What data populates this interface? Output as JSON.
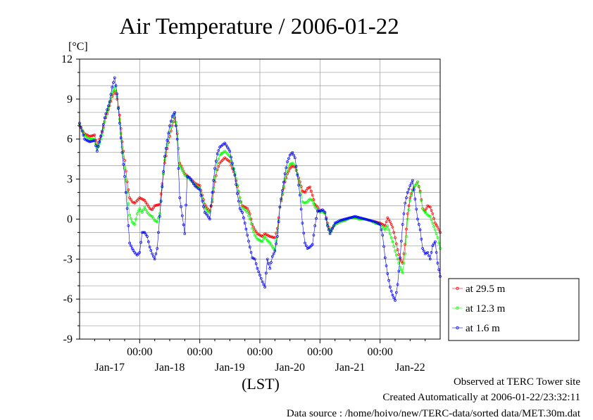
{
  "chart_data": {
    "type": "line",
    "title": "Air Temperature / 2006-01-22",
    "ylabel": "[°C]",
    "xlabel": "(LST)",
    "ylim": [
      -9,
      12
    ],
    "yticks": [
      "12",
      "9",
      "6",
      "3",
      "0",
      "-3",
      "-6",
      "-9"
    ],
    "ytick_values": [
      12,
      9,
      6,
      3,
      0,
      -3,
      -6,
      -9
    ],
    "x_range_hours": [
      0,
      144
    ],
    "xtick_time_label": "00:00",
    "xtick_hours": [
      24,
      48,
      72,
      96,
      120
    ],
    "date_labels": [
      "Jan-17",
      "Jan-18",
      "Jan-19",
      "Jan-20",
      "Jan-21",
      "Jan-22"
    ],
    "date_label_hours": [
      12,
      36,
      60,
      84,
      108,
      132
    ],
    "grid": true,
    "legend_position": "right",
    "x_values_note": "hours since 2006-01-16 00:00 LST",
    "series": [
      {
        "name": "at 29.5 m",
        "color": "#ff0000",
        "x": [
          0,
          2,
          4,
          6,
          7,
          8,
          9,
          10,
          12,
          13,
          14,
          14.5,
          15,
          16,
          17,
          18,
          19,
          20,
          21,
          22,
          24,
          26,
          28,
          29,
          30,
          32,
          34,
          35,
          36,
          37,
          38,
          39,
          40,
          42,
          44,
          45,
          46,
          48,
          50,
          51,
          52,
          53,
          54,
          55,
          56,
          58,
          60,
          62,
          64,
          65,
          66,
          67,
          68,
          69,
          70,
          71,
          72,
          73,
          74,
          76,
          78,
          79,
          80,
          82,
          83,
          84,
          85,
          86,
          87,
          88,
          89,
          90,
          91,
          92,
          93,
          94,
          95,
          96,
          97,
          98,
          99,
          100,
          102,
          104,
          106,
          108,
          110,
          112,
          114,
          116,
          118,
          120,
          121,
          122,
          123,
          124,
          125,
          126,
          127,
          128,
          129,
          130,
          131,
          132,
          133,
          134,
          135,
          136,
          137,
          138,
          139,
          140,
          141,
          142,
          143,
          144
        ],
        "values": [
          7.0,
          6.4,
          6.2,
          6.3,
          5.5,
          6.0,
          6.5,
          7.3,
          8.5,
          9.2,
          9.6,
          9.4,
          9.0,
          7.8,
          5.8,
          4.4,
          2.8,
          1.6,
          1.3,
          1.2,
          1.6,
          1.4,
          0.8,
          0.7,
          1.0,
          1.1,
          4.2,
          5.3,
          6.2,
          7.0,
          7.6,
          6.4,
          4.2,
          3.4,
          3.1,
          2.9,
          2.7,
          2.5,
          1.1,
          0.8,
          0.6,
          1.3,
          2.8,
          3.7,
          4.2,
          4.6,
          4.3,
          3.3,
          1.6,
          1.0,
          0.9,
          0.8,
          0.4,
          -0.4,
          -0.8,
          -1.1,
          -1.2,
          -1.3,
          -1.1,
          -1.3,
          -1.4,
          -0.7,
          0.9,
          2.8,
          3.4,
          3.8,
          4.0,
          3.9,
          3.4,
          2.8,
          2.1,
          2.0,
          2.3,
          2.4,
          1.8,
          1.1,
          0.9,
          0.6,
          0.7,
          0.5,
          -0.3,
          -0.9,
          -0.4,
          -0.2,
          -0.1,
          0.1,
          0.1,
          0.0,
          0.0,
          -0.1,
          -0.2,
          -0.3,
          -0.4,
          -0.5,
          0.1,
          -0.2,
          -0.6,
          -1.4,
          -2.3,
          -3.0,
          -3.3,
          -1.9,
          0.4,
          1.6,
          2.2,
          2.5,
          2.8,
          2.1,
          0.8,
          0.6,
          1.0,
          0.9,
          0.4,
          -0.3,
          -0.6,
          -1.0
        ]
      },
      {
        "name": "at 12.3 m",
        "color": "#00ff00",
        "x": [
          0,
          2,
          4,
          6,
          7,
          8,
          9,
          10,
          12,
          13,
          14,
          14.5,
          15,
          16,
          17,
          18,
          19,
          20,
          21,
          22,
          23,
          24,
          25,
          26,
          27,
          28,
          29,
          30,
          31,
          32,
          34,
          35,
          36,
          37,
          38,
          39,
          40,
          42,
          44,
          45,
          46,
          48,
          50,
          51,
          52,
          53,
          54,
          55,
          56,
          58,
          60,
          62,
          64,
          65,
          66,
          67,
          68,
          69,
          70,
          71,
          72,
          73,
          74,
          75,
          76,
          77,
          78,
          79,
          80,
          82,
          83,
          84,
          85,
          86,
          87,
          88,
          89,
          90,
          91,
          92,
          93,
          94,
          95,
          96,
          97,
          98,
          99,
          100,
          102,
          104,
          106,
          108,
          110,
          112,
          114,
          116,
          118,
          120,
          121,
          122,
          123,
          124,
          125,
          126,
          127,
          128,
          129,
          130,
          131,
          132,
          133,
          134,
          135,
          136,
          137,
          138,
          139,
          140,
          141,
          142,
          143,
          144
        ],
        "values": [
          7.1,
          6.3,
          6.0,
          6.0,
          5.3,
          5.7,
          6.3,
          7.3,
          8.7,
          9.5,
          9.9,
          9.6,
          9.2,
          7.5,
          5.4,
          3.8,
          2.0,
          0.3,
          -0.2,
          -0.4,
          0.4,
          0.8,
          0.5,
          0.9,
          0.5,
          0.3,
          0.2,
          -0.1,
          -0.2,
          0.4,
          4.4,
          5.6,
          6.5,
          7.3,
          7.9,
          6.6,
          4.0,
          3.3,
          3.0,
          2.8,
          2.6,
          2.3,
          0.9,
          0.6,
          0.5,
          1.5,
          3.2,
          4.2,
          4.8,
          5.1,
          4.7,
          3.5,
          1.6,
          0.9,
          0.7,
          0.5,
          0.0,
          -0.7,
          -1.2,
          -1.5,
          -1.6,
          -1.7,
          -1.3,
          -1.6,
          -1.8,
          -2.1,
          -2.3,
          -1.0,
          0.9,
          3.0,
          3.6,
          4.1,
          4.2,
          4.0,
          3.4,
          2.6,
          1.3,
          1.2,
          1.3,
          1.5,
          1.4,
          0.9,
          0.7,
          0.5,
          0.6,
          0.4,
          -0.4,
          -1.0,
          -0.4,
          -0.2,
          -0.1,
          0.1,
          0.1,
          0.0,
          0.0,
          -0.1,
          -0.3,
          -0.4,
          -0.6,
          -0.8,
          -0.5,
          -1.1,
          -1.7,
          -2.4,
          -3.0,
          -3.6,
          -4.0,
          -2.6,
          0.0,
          1.4,
          2.1,
          2.5,
          2.8,
          2.0,
          0.8,
          0.5,
          0.3,
          0.2,
          -0.3,
          -0.8,
          -1.4,
          -2.2
        ]
      },
      {
        "name": "at 1.6 m",
        "color": "#0000ff",
        "x": [
          0,
          2,
          4,
          6,
          7,
          8,
          9,
          10,
          12,
          13,
          14,
          14.5,
          15,
          16,
          17,
          18,
          19,
          20,
          21,
          22,
          23,
          24,
          25,
          26,
          27,
          28,
          29,
          30,
          31,
          32,
          34,
          35,
          36,
          37,
          38,
          39,
          40,
          42,
          43,
          44,
          45,
          46,
          48,
          50,
          51,
          52,
          53,
          54,
          55,
          56,
          58,
          60,
          62,
          63,
          64,
          65,
          66,
          67,
          68,
          69,
          70,
          71,
          72,
          73,
          74,
          75,
          76,
          77,
          78,
          79,
          80,
          82,
          83,
          84,
          85,
          86,
          87,
          88,
          89,
          90,
          91,
          92,
          93,
          94,
          95,
          96,
          97,
          98,
          99,
          100,
          102,
          104,
          106,
          108,
          110,
          112,
          114,
          116,
          118,
          120,
          121,
          122,
          123,
          124,
          125,
          126,
          127,
          128,
          129,
          130,
          131,
          132,
          133,
          134,
          135,
          136,
          137,
          138,
          139,
          140,
          141,
          142,
          143,
          144
        ],
        "values": [
          7.2,
          6.0,
          5.8,
          5.9,
          5.1,
          5.8,
          6.6,
          7.6,
          8.8,
          9.9,
          10.6,
          10.0,
          9.4,
          7.2,
          5.0,
          3.2,
          0.8,
          -1.8,
          -2.2,
          -2.5,
          -2.7,
          -2.5,
          -1.0,
          -1.0,
          -1.3,
          -2.1,
          -2.6,
          -3.0,
          -2.2,
          0.2,
          4.7,
          5.9,
          7.0,
          7.7,
          8.0,
          6.0,
          1.6,
          -1.1,
          3.2,
          3.1,
          2.8,
          2.5,
          2.2,
          0.5,
          0.3,
          0.0,
          2.0,
          3.8,
          4.9,
          5.4,
          5.7,
          5.1,
          3.3,
          1.9,
          0.8,
          0.5,
          -0.3,
          -1.2,
          -2.1,
          -2.9,
          -3.0,
          -3.7,
          -4.2,
          -4.7,
          -5.1,
          -3.0,
          -3.7,
          -2.8,
          -2.4,
          -1.3,
          0.9,
          3.4,
          4.3,
          4.8,
          5.0,
          4.6,
          3.3,
          1.8,
          -0.3,
          -1.8,
          -2.2,
          -2.1,
          -1.9,
          -0.5,
          0.6,
          0.6,
          0.7,
          0.5,
          -0.5,
          -1.1,
          -0.3,
          -0.1,
          0.0,
          0.1,
          0.2,
          0.1,
          0.0,
          -0.1,
          -0.2,
          -0.4,
          -1.2,
          -2.9,
          -4.1,
          -5.1,
          -5.7,
          -6.1,
          -4.9,
          -2.9,
          -0.4,
          1.2,
          2.0,
          2.5,
          2.9,
          1.5,
          0.0,
          -0.8,
          -2.2,
          -2.6,
          -2.5,
          -3.0,
          -2.0,
          -1.7,
          -3.3,
          -4.3
        ]
      }
    ]
  },
  "footer": {
    "line1": "Observed at TERC Tower site",
    "line2": "Created Automatically at 2006-01-22/23:32:11",
    "line3": "Data source : /home/hoivo/new/TERC-data/sorted  data/MET.30m.dat"
  }
}
